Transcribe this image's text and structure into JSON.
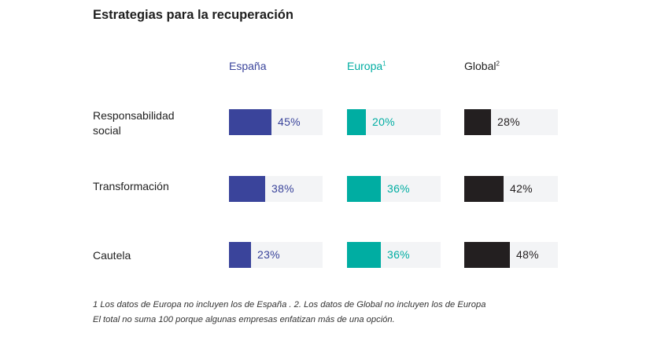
{
  "chart_data": {
    "type": "bar",
    "title": "Estrategias para la recuperación",
    "categories": [
      "Responsabilidad social",
      "Transformación",
      "Cautela"
    ],
    "category_lines": [
      [
        "Responsabilidad",
        "social"
      ],
      [
        "Transformación"
      ],
      [
        "Cautela"
      ]
    ],
    "series": [
      {
        "name": "España",
        "sup": "",
        "color": "#3a449b",
        "values": [
          45,
          38,
          23
        ]
      },
      {
        "name": "Europa",
        "sup": "1",
        "color": "#00ada2",
        "values": [
          20,
          36,
          36
        ]
      },
      {
        "name": "Global",
        "sup": "2",
        "color": "#231f20",
        "values": [
          28,
          42,
          48
        ]
      }
    ],
    "value_suffix": "%",
    "scale_max": 100,
    "cell_color": "#f3f4f6"
  },
  "footnotes": [
    "1 Los datos de Europa no incluyen los de España . 2. Los datos de Global no incluyen los de Europa",
    "El total no suma 100 porque algunas empresas enfatizan más de una opción."
  ]
}
